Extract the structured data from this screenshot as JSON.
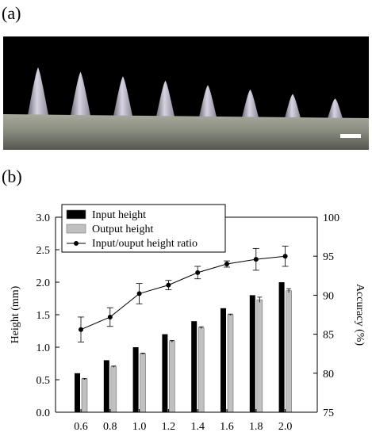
{
  "panels": {
    "a": "(a)",
    "b": "(b)"
  },
  "photo": {
    "description_icon": "microneedle-array-photo",
    "needle_count": 8,
    "colors": {
      "background": "#000000",
      "base": "#8a8d80",
      "needle": "#b9b4c4"
    }
  },
  "chart_data": {
    "type": "bar",
    "x": [
      0.6,
      0.8,
      1.0,
      1.2,
      1.4,
      1.6,
      1.8,
      2.0
    ],
    "x_tick_labels": [
      "0.6",
      "0.8",
      "1.0",
      "1.2",
      "1.4",
      "1.6",
      "1.8",
      "2.0"
    ],
    "ylabel": "Height (mm)",
    "y2label": "Accuracy (%)",
    "ylim": [
      0.0,
      3.0
    ],
    "y2lim": [
      75,
      100
    ],
    "y_ticks": [
      "0.0",
      "0.5",
      "1.0",
      "1.5",
      "2.0",
      "2.5",
      "3.0"
    ],
    "y2_ticks": [
      "75",
      "80",
      "85",
      "90",
      "95",
      "100"
    ],
    "series": [
      {
        "name": "Input height",
        "kind": "bar",
        "color": "#000000",
        "values": [
          0.6,
          0.8,
          1.0,
          1.2,
          1.4,
          1.6,
          1.8,
          2.0
        ]
      },
      {
        "name": "Output height",
        "kind": "bar",
        "color": "#c0c0c0",
        "values": [
          0.51,
          0.7,
          0.9,
          1.09,
          1.3,
          1.5,
          1.73,
          1.87
        ],
        "errors": [
          0.01,
          0.01,
          0.01,
          0.015,
          0.015,
          0.01,
          0.04,
          0.03
        ]
      },
      {
        "name": "Input/ouput height ratio",
        "kind": "line",
        "axis": "right",
        "color": "#000000",
        "values": [
          85.6,
          87.2,
          90.2,
          91.3,
          92.9,
          94.0,
          94.6,
          95.0
        ],
        "errors": [
          1.6,
          1.2,
          1.3,
          0.6,
          0.8,
          0.4,
          1.4,
          1.3
        ]
      }
    ],
    "legend_position": "top-left",
    "grid": false
  }
}
